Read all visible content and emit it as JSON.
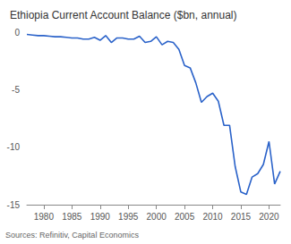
{
  "chart_data": {
    "type": "line",
    "title": "Ethiopia Current Account Balance ($bn, annual)",
    "source": "Sources: Refinitiv, Capital Economics",
    "x": [
      1977,
      1978,
      1979,
      1980,
      1981,
      1982,
      1983,
      1984,
      1985,
      1986,
      1987,
      1988,
      1989,
      1990,
      1991,
      1992,
      1993,
      1994,
      1995,
      1996,
      1997,
      1998,
      1999,
      2000,
      2001,
      2002,
      2003,
      2004,
      2005,
      2006,
      2007,
      2008,
      2009,
      2010,
      2011,
      2012,
      2013,
      2014,
      2015,
      2016,
      2017,
      2018,
      2019,
      2020,
      2021,
      2022
    ],
    "values": [
      -0.2,
      -0.25,
      -0.3,
      -0.3,
      -0.35,
      -0.4,
      -0.4,
      -0.45,
      -0.5,
      -0.5,
      -0.6,
      -0.6,
      -0.45,
      -0.7,
      -0.3,
      -0.9,
      -0.5,
      -0.5,
      -0.6,
      -0.6,
      -0.35,
      -0.9,
      -0.8,
      -0.4,
      -1.1,
      -0.8,
      -0.9,
      -1.5,
      -2.9,
      -3.1,
      -4.4,
      -6.1,
      -5.6,
      -5.3,
      -6.0,
      -8.1,
      -8.1,
      -11.7,
      -13.9,
      -14.1,
      -12.6,
      -12.3,
      -11.5,
      -9.5,
      -13.2,
      -12.1
    ],
    "color": "#2a62c9",
    "xlim": [
      1977,
      2022
    ],
    "xticks": [
      1980,
      1985,
      1990,
      1995,
      2000,
      2005,
      2010,
      2015,
      2020
    ],
    "ylim": [
      -15,
      0
    ],
    "yticks": [
      -15,
      -10,
      -5,
      0
    ],
    "grid": false
  }
}
